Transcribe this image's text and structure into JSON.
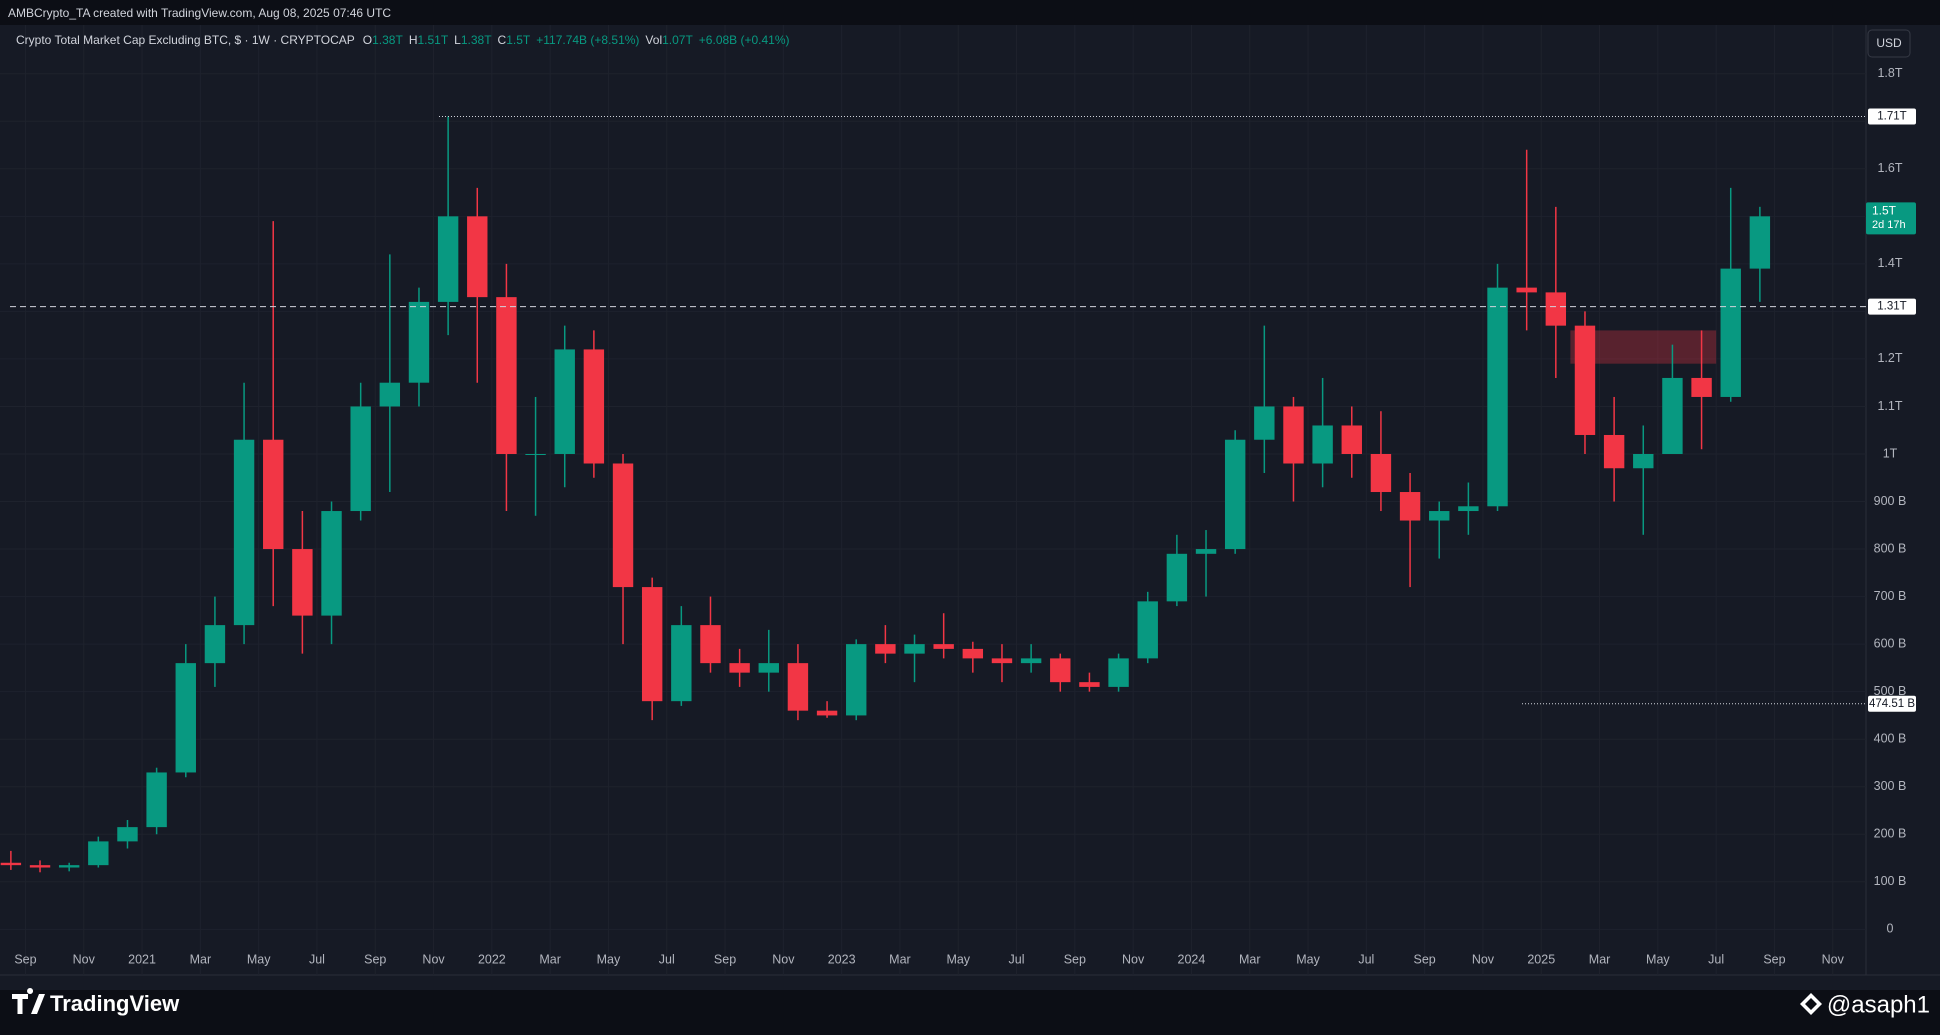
{
  "header": {
    "credit": "AMBCrypto_TA created with TradingView.com, Aug 08, 2025 07:46 UTC",
    "currency_button": "USD"
  },
  "footer": {
    "brand": "TradingView",
    "author": "@asaph1"
  },
  "chart_data": {
    "type": "candlestick",
    "title": "Crypto Total Market Cap Excluding BTC, $ · 1W · CRYPTOCAP",
    "ohlc": [
      {
        "label": "O",
        "value": "1.38T"
      },
      {
        "label": "H",
        "value": "1.51T"
      },
      {
        "label": "L",
        "value": "1.38T"
      },
      {
        "label": "C",
        "value": "1.5T"
      }
    ],
    "change": "+117.74B (+8.51%)",
    "volume": {
      "label": "Vol",
      "value": "1.07T",
      "change": "+6.08B (+0.41%)"
    },
    "up_color": "#089981",
    "down_color": "#f23645",
    "x": [
      "2020-08",
      "2020-09",
      "2020-10",
      "2020-11",
      "2020-12",
      "2021-01",
      "2021-02",
      "2021-03",
      "2021-04",
      "2021-05",
      "2021-06",
      "2021-07",
      "2021-08",
      "2021-09",
      "2021-10",
      "2021-11",
      "2021-12",
      "2022-01",
      "2022-02",
      "2022-03",
      "2022-04",
      "2022-05",
      "2022-06",
      "2022-07",
      "2022-08",
      "2022-09",
      "2022-10",
      "2022-11",
      "2022-12",
      "2023-01",
      "2023-02",
      "2023-03",
      "2023-04",
      "2023-05",
      "2023-06",
      "2023-07",
      "2023-08",
      "2023-09",
      "2023-10",
      "2023-11",
      "2023-12",
      "2024-01",
      "2024-02",
      "2024-03",
      "2024-04",
      "2024-05",
      "2024-06",
      "2024-07",
      "2024-08",
      "2024-09",
      "2024-10",
      "2024-11",
      "2024-12",
      "2025-01",
      "2025-02",
      "2025-03",
      "2025-04",
      "2025-05",
      "2025-06",
      "2025-07",
      "2025-08"
    ],
    "open": [
      140,
      135,
      130,
      135,
      185,
      215,
      330,
      560,
      640,
      1030,
      800,
      660,
      880,
      1100,
      1150,
      1320,
      1500,
      1330,
      1000,
      1000,
      1220,
      980,
      720,
      480,
      640,
      560,
      540,
      560,
      460,
      450,
      600,
      580,
      600,
      590,
      570,
      560,
      570,
      520,
      510,
      570,
      690,
      790,
      800,
      1030,
      1100,
      980,
      1060,
      1000,
      920,
      860,
      880,
      890,
      1350,
      1340,
      1270,
      1040,
      970,
      1000,
      1160,
      1120,
      1390
    ],
    "high": [
      165,
      145,
      140,
      195,
      230,
      340,
      600,
      700,
      1150,
      1490,
      880,
      900,
      1150,
      1420,
      1350,
      1710,
      1560,
      1400,
      1120,
      1270,
      1260,
      1000,
      740,
      680,
      700,
      590,
      630,
      600,
      480,
      610,
      640,
      620,
      665,
      605,
      600,
      600,
      580,
      540,
      580,
      710,
      830,
      840,
      1050,
      1270,
      1120,
      1160,
      1100,
      1090,
      960,
      900,
      940,
      1400,
      1640,
      1520,
      1300,
      1120,
      1060,
      1230,
      1260,
      1560,
      1520
    ],
    "low": [
      125,
      120,
      122,
      130,
      170,
      200,
      320,
      510,
      600,
      680,
      580,
      600,
      860,
      920,
      1100,
      1250,
      1150,
      880,
      870,
      930,
      950,
      600,
      440,
      470,
      540,
      510,
      500,
      440,
      445,
      440,
      560,
      520,
      570,
      540,
      520,
      540,
      500,
      500,
      500,
      560,
      680,
      700,
      790,
      960,
      900,
      930,
      950,
      880,
      720,
      780,
      830,
      880,
      1260,
      1160,
      1000,
      900,
      830,
      1000,
      1010,
      1110,
      1320
    ],
    "close": [
      135,
      130,
      135,
      185,
      215,
      330,
      560,
      640,
      1030,
      800,
      660,
      880,
      1100,
      1150,
      1320,
      1500,
      1330,
      1000,
      1000,
      1220,
      980,
      720,
      480,
      640,
      560,
      540,
      560,
      460,
      450,
      600,
      580,
      600,
      590,
      570,
      560,
      570,
      520,
      510,
      570,
      690,
      790,
      800,
      1030,
      1100,
      980,
      1060,
      1000,
      920,
      860,
      880,
      890,
      1350,
      1340,
      1270,
      1040,
      970,
      1000,
      1160,
      1120,
      1390,
      1500
    ],
    "ylim": [
      -94,
      1831
    ],
    "yticks": [
      0,
      {
        "value": 100,
        "label": "100 B"
      },
      {
        "value": 200,
        "label": "200 B"
      },
      {
        "value": 300,
        "label": "300 B"
      },
      {
        "value": 400,
        "label": "400 B"
      },
      {
        "value": 500,
        "label": "500 B"
      },
      {
        "value": 600,
        "label": "600 B"
      },
      {
        "value": 700,
        "label": "700 B"
      },
      {
        "value": 800,
        "label": "800 B"
      },
      {
        "value": 900,
        "label": "900 B"
      },
      {
        "value": 1000,
        "label": "1T"
      },
      {
        "value": 1100,
        "label": "1.1T"
      },
      {
        "value": 1200,
        "label": "1.2T"
      },
      {
        "value": 1300,
        "label": "1.3T"
      },
      {
        "value": 1400,
        "label": "1.4T"
      },
      {
        "value": 1500,
        "label": "1.5T"
      },
      {
        "value": 1600,
        "label": "1.6T"
      },
      {
        "value": 1700,
        "label": "1.7T"
      },
      {
        "value": 1800,
        "label": "1.8T"
      }
    ],
    "xticks": [
      {
        "value": "2020-09",
        "label": "Sep"
      },
      {
        "value": "2020-11",
        "label": "Nov"
      },
      {
        "value": "2021-01",
        "label": "2021"
      },
      {
        "value": "2021-03",
        "label": "Mar"
      },
      {
        "value": "2021-05",
        "label": "May"
      },
      {
        "value": "2021-07",
        "label": "Jul"
      },
      {
        "value": "2021-09",
        "label": "Sep"
      },
      {
        "value": "2021-11",
        "label": "Nov"
      },
      {
        "value": "2022-01",
        "label": "2022"
      },
      {
        "value": "2022-03",
        "label": "Mar"
      },
      {
        "value": "2022-05",
        "label": "May"
      },
      {
        "value": "2022-07",
        "label": "Jul"
      },
      {
        "value": "2022-09",
        "label": "Sep"
      },
      {
        "value": "2022-11",
        "label": "Nov"
      },
      {
        "value": "2023-01",
        "label": "2023"
      },
      {
        "value": "2023-03",
        "label": "Mar"
      },
      {
        "value": "2023-05",
        "label": "May"
      },
      {
        "value": "2023-07",
        "label": "Jul"
      },
      {
        "value": "2023-09",
        "label": "Sep"
      },
      {
        "value": "2023-11",
        "label": "Nov"
      },
      {
        "value": "2024-01",
        "label": "2024"
      },
      {
        "value": "2024-03",
        "label": "Mar"
      },
      {
        "value": "2024-05",
        "label": "May"
      },
      {
        "value": "2024-07",
        "label": "Jul"
      },
      {
        "value": "2024-09",
        "label": "Sep"
      },
      {
        "value": "2024-11",
        "label": "Nov"
      },
      {
        "value": "2025-01",
        "label": "2025"
      },
      {
        "value": "2025-03",
        "label": "Mar"
      },
      {
        "value": "2025-05",
        "label": "May"
      },
      {
        "value": "2025-07",
        "label": "Jul"
      },
      {
        "value": "2025-09",
        "label": "Sep"
      },
      {
        "value": "2025-11",
        "label": "Nov"
      }
    ],
    "grid": true,
    "price_lines": [
      {
        "value": 1710,
        "label": "1.71T",
        "style": "dotted"
      },
      {
        "value": 1310,
        "label": "1.31T",
        "style": "dashed"
      },
      {
        "value": 474.51,
        "label": "474.51 B",
        "style": "dotted"
      }
    ],
    "last_price": {
      "value": 1500,
      "label": "1.5T",
      "countdown": "2d 17h"
    },
    "zones": [
      {
        "low": 1190,
        "high": 1260,
        "start": "2025-02",
        "end": "2025-07",
        "color": "#f23645"
      }
    ]
  }
}
